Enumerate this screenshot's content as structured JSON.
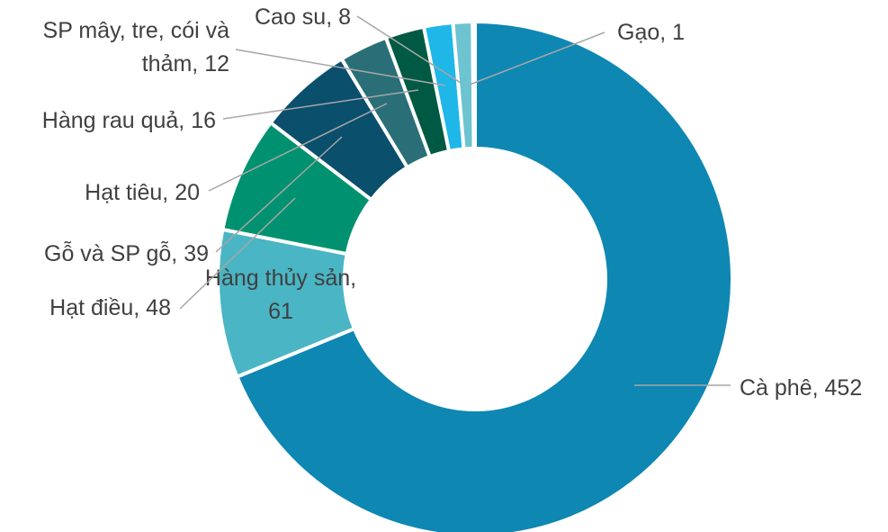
{
  "chart_data": {
    "type": "donut",
    "categories": [
      "Cà phê",
      "Hàng thủy sản",
      "Hạt điều",
      "Gỗ và SP gỗ",
      "Hạt tiêu",
      "Hàng rau quả",
      "SP mây, tre, cói và thảm",
      "Cao su",
      "Gạo"
    ],
    "values": [
      452,
      61,
      48,
      39,
      20,
      16,
      12,
      8,
      1
    ],
    "value_labels": [
      "Cà phê,  452",
      "Hàng thủy sản,\n61",
      "Hạt điều,  48",
      "Gỗ và SP gỗ,  39",
      "Hạt tiêu,  20",
      "Hàng rau quả,  16",
      "SP mây, tre, cói và\nthảm,  12",
      "Cao su,  8",
      "Gạo,  1"
    ],
    "colors": [
      "#0e87b3",
      "#4ab5c4",
      "#009270",
      "#0a4f6c",
      "#2a6f77",
      "#005a43",
      "#1fb6e8",
      "#6ec3d0",
      "#1e7fa0"
    ]
  }
}
